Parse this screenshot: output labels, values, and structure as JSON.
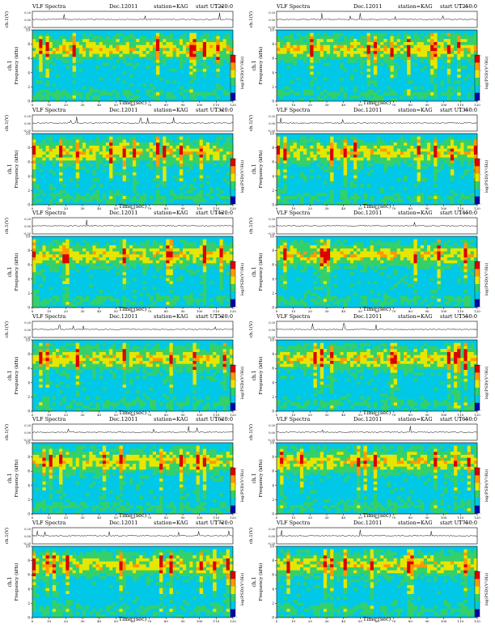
{
  "document": {
    "title_left": "VLF Spectra",
    "date": "Dec.12011",
    "station": "station=KAG",
    "start_prefix": "start UT ="
  },
  "axes": {
    "ts_ylabel": "ch.1(V)",
    "ts_ticks": [
      "0.20",
      "0.00",
      "-0.20"
    ],
    "spec_ylabel_1": "ch.1",
    "spec_ylabel_2": "Frequency (kHz)",
    "freq_ticks": [
      "0",
      "2",
      "4",
      "6",
      "8",
      "10"
    ],
    "xlabel": "Time (sec)",
    "time_ticks": [
      "0",
      "10",
      "20",
      "30",
      "40",
      "50",
      "60",
      "70",
      "80",
      "90",
      "100",
      "110",
      "120"
    ],
    "colorbar_label": "log(PSD)(V²/Hz)",
    "colorbar_ticks": [
      "-",
      "-",
      "-",
      "-"
    ]
  },
  "colors": {
    "blue": "#0000aa",
    "cyan": "#00c8e6",
    "green": "#34d06a",
    "yellow": "#e6e600",
    "orange": "#ff9900",
    "red": "#dd0000"
  },
  "chart_data": [
    {
      "type": "heatmap",
      "start_ut": "1220:0",
      "xlabel": "Time (sec)",
      "ylabel": "Frequency (kHz)",
      "xlim": [
        0,
        120
      ],
      "ylim": [
        0,
        10
      ]
    },
    {
      "type": "heatmap",
      "start_ut": "1250:0",
      "xlabel": "Time (sec)",
      "ylabel": "Frequency (kHz)",
      "xlim": [
        0,
        120
      ],
      "ylim": [
        0,
        10
      ]
    },
    {
      "type": "heatmap",
      "start_ut": "1320:0",
      "xlabel": "Time (sec)",
      "ylabel": "Frequency (kHz)",
      "xlim": [
        0,
        120
      ],
      "ylim": [
        0,
        10
      ]
    },
    {
      "type": "heatmap",
      "start_ut": "1350:0",
      "xlabel": "Time (sec)",
      "ylabel": "Frequency (kHz)",
      "xlim": [
        0,
        120
      ],
      "ylim": [
        0,
        10
      ]
    },
    {
      "type": "heatmap",
      "start_ut": "1420:0",
      "xlabel": "Time (sec)",
      "ylabel": "Frequency (kHz)",
      "xlim": [
        0,
        120
      ],
      "ylim": [
        0,
        10
      ]
    },
    {
      "type": "heatmap",
      "start_ut": "1450:0",
      "xlabel": "Time (sec)",
      "ylabel": "Frequency (kHz)",
      "xlim": [
        0,
        120
      ],
      "ylim": [
        0,
        10
      ]
    },
    {
      "type": "heatmap",
      "start_ut": "1520:0",
      "xlabel": "Time (sec)",
      "ylabel": "Frequency (kHz)",
      "xlim": [
        0,
        120
      ],
      "ylim": [
        0,
        10
      ]
    },
    {
      "type": "heatmap",
      "start_ut": "1550:0",
      "xlabel": "Time (sec)",
      "ylabel": "Frequency (kHz)",
      "xlim": [
        0,
        120
      ],
      "ylim": [
        0,
        10
      ]
    },
    {
      "type": "heatmap",
      "start_ut": "1620:0",
      "xlabel": "Time (sec)",
      "ylabel": "Frequency (kHz)",
      "xlim": [
        0,
        120
      ],
      "ylim": [
        0,
        10
      ]
    },
    {
      "type": "heatmap",
      "start_ut": "1650:0",
      "xlabel": "Time (sec)",
      "ylabel": "Frequency (kHz)",
      "xlim": [
        0,
        120
      ],
      "ylim": [
        0,
        10
      ]
    },
    {
      "type": "heatmap",
      "start_ut": "1720:0",
      "xlabel": "Time (sec)",
      "ylabel": "Frequency (kHz)",
      "xlim": [
        0,
        120
      ],
      "ylim": [
        0,
        10
      ]
    },
    {
      "type": "heatmap",
      "start_ut": "1750:0",
      "xlabel": "Time (sec)",
      "ylabel": "Frequency (kHz)",
      "xlim": [
        0,
        120
      ],
      "ylim": [
        0,
        10
      ]
    }
  ]
}
